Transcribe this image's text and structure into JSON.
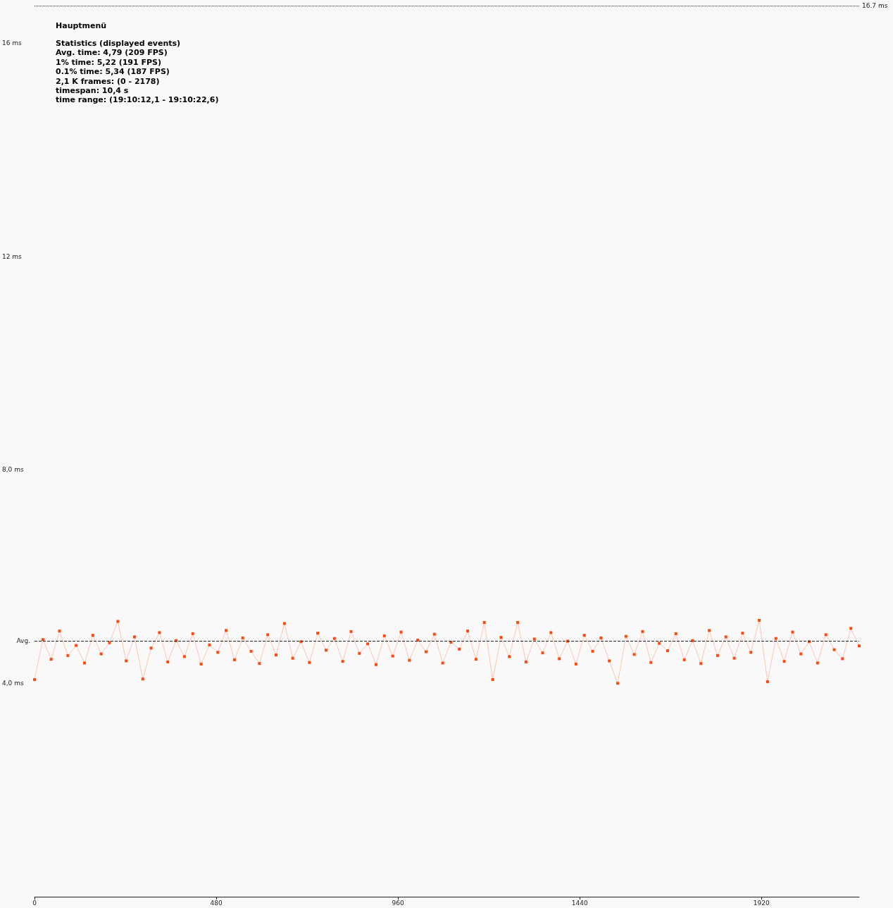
{
  "chart_data": {
    "type": "line",
    "subtitle": "Hauptmenü",
    "annotations": [
      "Statistics (displayed events)",
      "Avg. time: 4,79 (209 FPS)",
      "1% time: 5,22 (191 FPS)",
      "0.1% time: 5,34 (187 FPS)",
      "2,1 K frames: (0 - 2178)",
      "timespan: 10,4 s",
      "time range: (19:10:12,1 - 19:10:22,6)"
    ],
    "x": [
      0,
      22,
      44,
      66,
      88,
      110,
      132,
      154,
      176,
      198,
      220,
      242,
      264,
      286,
      308,
      330,
      352,
      374,
      396,
      418,
      440,
      462,
      484,
      506,
      528,
      550,
      572,
      594,
      616,
      638,
      660,
      682,
      704,
      726,
      748,
      770,
      792,
      814,
      836,
      858,
      880,
      902,
      924,
      946,
      968,
      990,
      1012,
      1034,
      1056,
      1078,
      1100,
      1122,
      1144,
      1166,
      1188,
      1210,
      1232,
      1254,
      1276,
      1298,
      1320,
      1342,
      1364,
      1386,
      1408,
      1430,
      1452,
      1474,
      1496,
      1518,
      1540,
      1562,
      1584,
      1606,
      1628,
      1650,
      1672,
      1694,
      1716,
      1738,
      1760,
      1782,
      1804,
      1826,
      1848,
      1870,
      1892,
      1914,
      1936,
      1958,
      1980,
      2002,
      2024,
      2046,
      2068,
      2090,
      2112,
      2134,
      2156,
      2178
    ],
    "series": [
      {
        "color": "#ff4a0f",
        "values": [
          4.07,
          4.82,
          4.45,
          4.98,
          4.52,
          4.71,
          4.38,
          4.9,
          4.55,
          4.76,
          5.16,
          4.42,
          4.87,
          4.08,
          4.66,
          4.95,
          4.4,
          4.8,
          4.5,
          4.93,
          4.36,
          4.72,
          4.58,
          4.99,
          4.44,
          4.85,
          4.6,
          4.37,
          4.91,
          4.53,
          5.12,
          4.47,
          4.78,
          4.39,
          4.94,
          4.62,
          4.84,
          4.41,
          4.97,
          4.56,
          4.74,
          4.35,
          4.89,
          4.51,
          4.96,
          4.43,
          4.81,
          4.59,
          4.92,
          4.38,
          4.77,
          4.64,
          4.98,
          4.45,
          5.14,
          4.07,
          4.86,
          4.5,
          5.14,
          4.4,
          4.83,
          4.57,
          4.95,
          4.46,
          4.79,
          4.36,
          4.9,
          4.6,
          4.85,
          4.42,
          4.0,
          4.88,
          4.54,
          4.97,
          4.39,
          4.75,
          4.61,
          4.93,
          4.44,
          4.8,
          4.37,
          4.99,
          4.52,
          4.87,
          4.47,
          4.94,
          4.58,
          5.18,
          4.03,
          4.84,
          4.41,
          4.96,
          4.55,
          4.78,
          4.38,
          4.91,
          4.63,
          4.46,
          5.03,
          4.7
        ]
      }
    ],
    "xlim": [
      0,
      2178
    ],
    "xticks": [
      0,
      480,
      960,
      1440,
      1920
    ],
    "ylim": [
      0,
      16.7
    ],
    "yticks": [
      {
        "value": 4,
        "label": "4,0 ms"
      },
      {
        "value": 8,
        "label": "8,0 ms"
      },
      {
        "value": 12,
        "label": "12 ms"
      },
      {
        "value": 16,
        "label": "16 ms"
      }
    ],
    "ref_lines": [
      {
        "axis": "y",
        "value": 16.7,
        "label": "16.7 ms",
        "color": "#333333",
        "line_style": "dotted"
      },
      {
        "axis": "y",
        "value": 4.79,
        "label": "Avg.",
        "color": "#222222",
        "line_style": "dashed"
      }
    ],
    "marker": "square",
    "grid": false
  }
}
